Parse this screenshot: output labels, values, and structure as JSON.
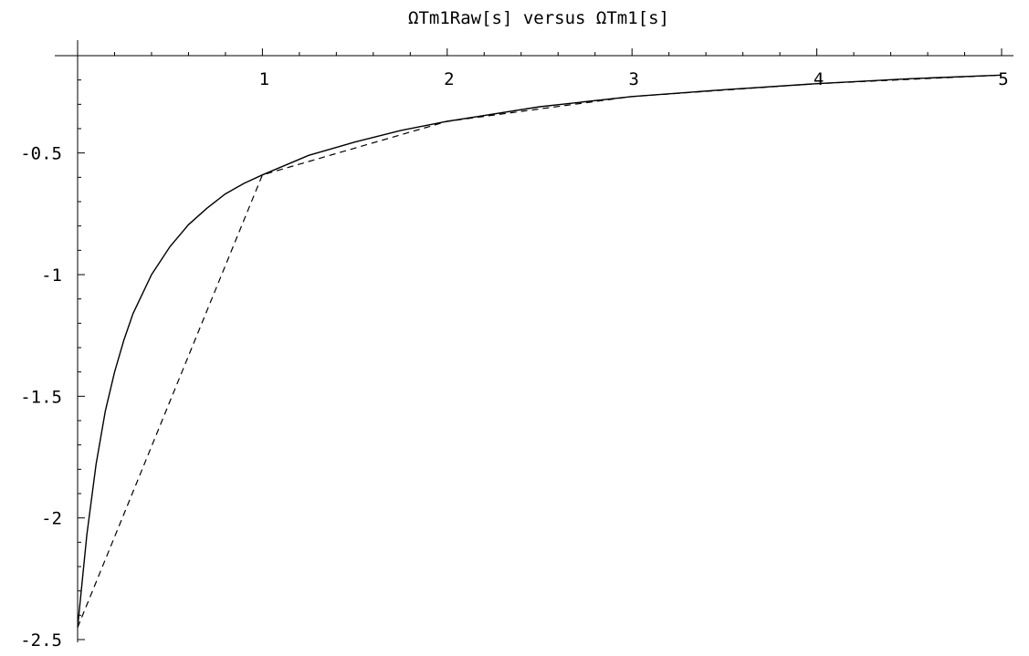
{
  "chart_data": {
    "type": "line",
    "title": "ΩTm1Raw[s] versus ΩTm1[s]",
    "xlabel": "",
    "ylabel": "",
    "xlim": [
      0,
      5
    ],
    "ylim": [
      -2.5,
      -0.1
    ],
    "grid": false,
    "x_ticks": [
      1,
      2,
      3,
      4,
      5
    ],
    "x_tick_labels": [
      "1",
      "2",
      "3",
      "4",
      "5"
    ],
    "y_ticks": [
      -0.5,
      -1,
      -1.5,
      -2,
      -2.5
    ],
    "y_tick_labels": [
      "-0.5",
      "-1",
      "-1.5",
      "-2",
      "-2.5"
    ],
    "series": [
      {
        "style": "solid",
        "color": "#000000",
        "x": [
          0,
          0.05,
          0.1,
          0.15,
          0.2,
          0.25,
          0.3,
          0.4,
          0.5,
          0.6,
          0.7,
          0.8,
          0.9,
          1.0,
          1.25,
          1.5,
          1.75,
          2.0,
          2.5,
          3.0,
          3.5,
          4.0,
          4.5,
          5.0
        ],
        "values": [
          -2.45,
          -2.07,
          -1.78,
          -1.56,
          -1.4,
          -1.27,
          -1.16,
          -1.0,
          -0.885,
          -0.795,
          -0.727,
          -0.668,
          -0.625,
          -0.59,
          -0.51,
          -0.455,
          -0.407,
          -0.37,
          -0.31,
          -0.268,
          -0.24,
          -0.215,
          -0.195,
          -0.18
        ]
      },
      {
        "style": "dashed",
        "color": "#000000",
        "x": [
          0,
          1,
          2,
          3,
          4,
          5
        ],
        "values": [
          -2.45,
          -0.59,
          -0.37,
          -0.268,
          -0.215,
          -0.18
        ]
      }
    ]
  }
}
